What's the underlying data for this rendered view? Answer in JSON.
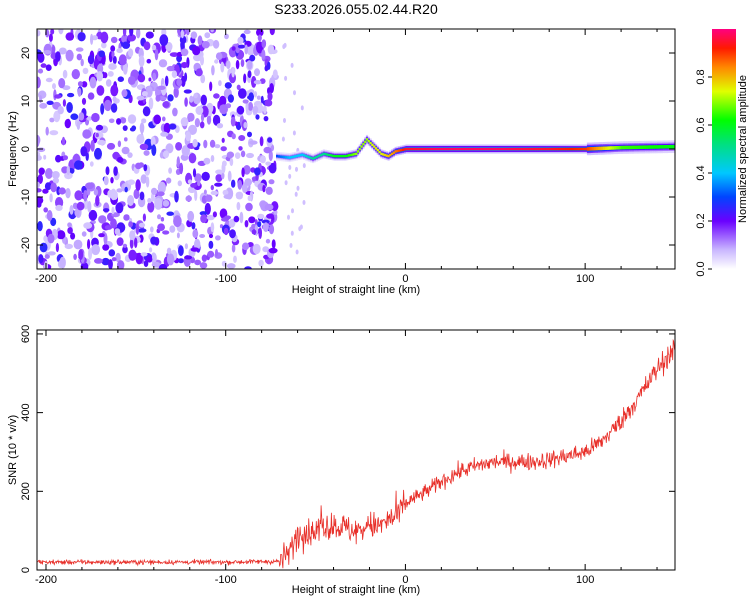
{
  "title": "S233.2026.055.02.44.R20",
  "chart_data": [
    {
      "type": "heatmap",
      "xlabel": "Height of straight line (km)",
      "ylabel": "Frequency (Hz)",
      "xlim": [
        -205,
        150
      ],
      "ylim": [
        -25,
        25
      ],
      "x_ticks": [
        -200,
        -100,
        0,
        100
      ],
      "y_ticks": [
        -20,
        -10,
        0,
        10,
        20
      ],
      "colorbar": {
        "label": "Normalized spectral amplitude",
        "range": [
          0,
          1
        ],
        "ticks": [
          "0.0",
          "0.2",
          "0.4",
          "0.6",
          "0.8"
        ]
      },
      "noise_region_x": [
        -205,
        -72
      ],
      "tone_track": {
        "x": [
          -72,
          -65,
          -58,
          -52,
          -46,
          -40,
          -34,
          -28,
          -22,
          -18,
          -14,
          -10,
          -6,
          0,
          20,
          50,
          80,
          100,
          120,
          150
        ],
        "freq": [
          -1.5,
          -1.8,
          -1.2,
          -2.0,
          -1.0,
          -1.5,
          -1.5,
          -1.0,
          2.0,
          0.5,
          -1.0,
          -1.5,
          -0.5,
          0,
          0,
          0,
          0,
          0,
          0.3,
          0.5
        ],
        "amplitude": [
          0.3,
          0.4,
          0.4,
          0.5,
          0.5,
          0.6,
          0.6,
          0.7,
          0.7,
          0.75,
          0.75,
          0.8,
          0.85,
          0.95,
          0.98,
          0.98,
          0.95,
          0.9,
          0.65,
          0.6
        ]
      },
      "grid": false
    },
    {
      "type": "line",
      "xlabel": "Height of straight line (km)",
      "ylabel": "SNR (10 * v/v)",
      "xlim": [
        -205,
        150
      ],
      "ylim": [
        0,
        610
      ],
      "x_ticks": [
        -200,
        -100,
        0,
        100
      ],
      "y_ticks": [
        0,
        200,
        400,
        600
      ],
      "color": "#e8302a",
      "series": [
        {
          "x": [
            -205,
            -100,
            -70,
            -65,
            -60,
            -55,
            -50,
            -45,
            -40,
            -35,
            -30,
            -25,
            -20,
            -15,
            -10,
            -5,
            0,
            10,
            20,
            30,
            40,
            50,
            60,
            70,
            80,
            90,
            100,
            110,
            120,
            130,
            140,
            150
          ],
          "values": [
            20,
            20,
            22,
            45,
            90,
            95,
            100,
            110,
            115,
            110,
            100,
            100,
            115,
            110,
            125,
            135,
            170,
            195,
            225,
            250,
            265,
            275,
            275,
            275,
            280,
            290,
            300,
            330,
            380,
            440,
            510,
            565
          ]
        }
      ],
      "grid": false
    }
  ]
}
